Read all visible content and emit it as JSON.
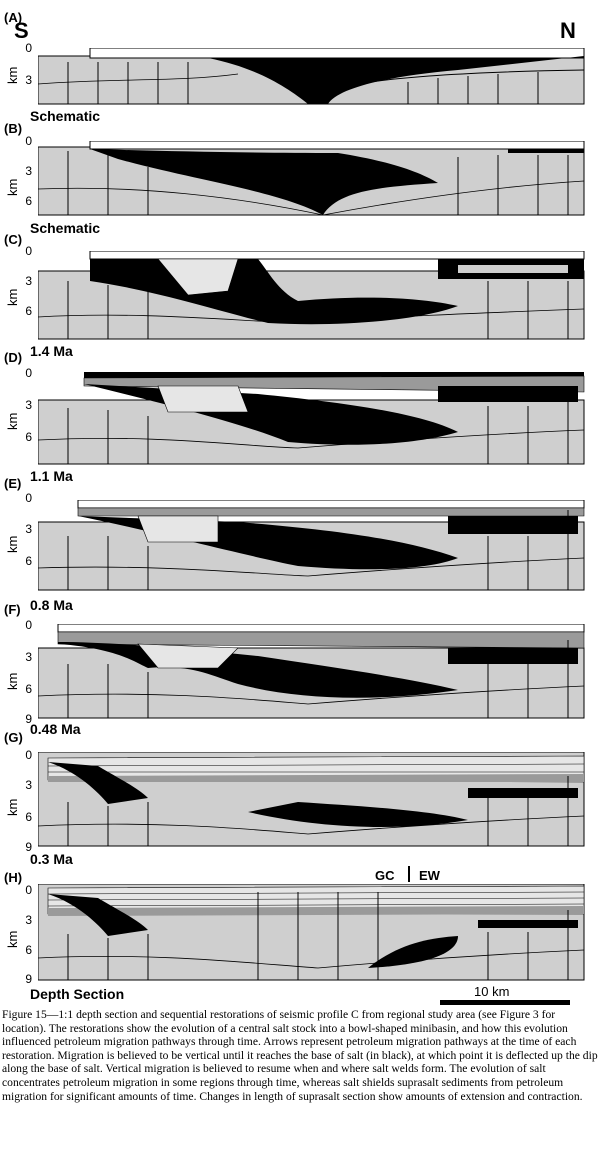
{
  "panels": [
    {
      "id": "(A)",
      "ticks": [
        "0",
        "3"
      ],
      "date": "Schematic"
    },
    {
      "id": "(B)",
      "ticks": [
        "0",
        "3",
        "6"
      ],
      "date": "Schematic"
    },
    {
      "id": "(C)",
      "ticks": [
        "0",
        "3",
        "6"
      ],
      "date": "1.4 Ma"
    },
    {
      "id": "(D)",
      "ticks": [
        "0",
        "3",
        "6"
      ],
      "date": "1.1 Ma"
    },
    {
      "id": "(E)",
      "ticks": [
        "0",
        "3",
        "6"
      ],
      "date": "0.8 Ma"
    },
    {
      "id": "(F)",
      "ticks": [
        "0",
        "3",
        "6",
        "9"
      ],
      "date": "0.48 Ma"
    },
    {
      "id": "(G)",
      "ticks": [
        "0",
        "3",
        "6",
        "9"
      ],
      "date": "0.3 Ma"
    },
    {
      "id": "(H)",
      "ticks": [
        "0",
        "3",
        "6",
        "9"
      ],
      "date": "Depth Section"
    }
  ],
  "axis_unit": "km",
  "direction": {
    "left": "S",
    "right": "N"
  },
  "boundary": {
    "left": "GC",
    "right": "EW"
  },
  "scale_bar": "10 km",
  "caption": "Figure 15—1:1 depth section and sequential restorations of seismic profile C from regional study area (see Figure 3 for location). The restorations show the evolution of a central salt stock into a bowl-shaped minibasin, and how this evolution influenced petroleum migration pathways through time. Arrows represent petroleum migration pathways at the time of each restoration. Migration is believed to be vertical until it reaches the base of salt (in black), at which point it is deflected up the dip along the base of salt. Vertical migration is believed to resume when and where salt welds form. The evolution of salt concentrates petroleum migration in some regions through time, whereas salt shields suprasalt sediments from petroleum migration for significant amounts of time. Changes in length of suprasalt section show amounts of extension and contraction.",
  "colors": {
    "salt": "#000000",
    "sediment": "#cfcfcf",
    "light_unit": "#e6e6e6",
    "dark_unit": "#9a9a9a"
  }
}
